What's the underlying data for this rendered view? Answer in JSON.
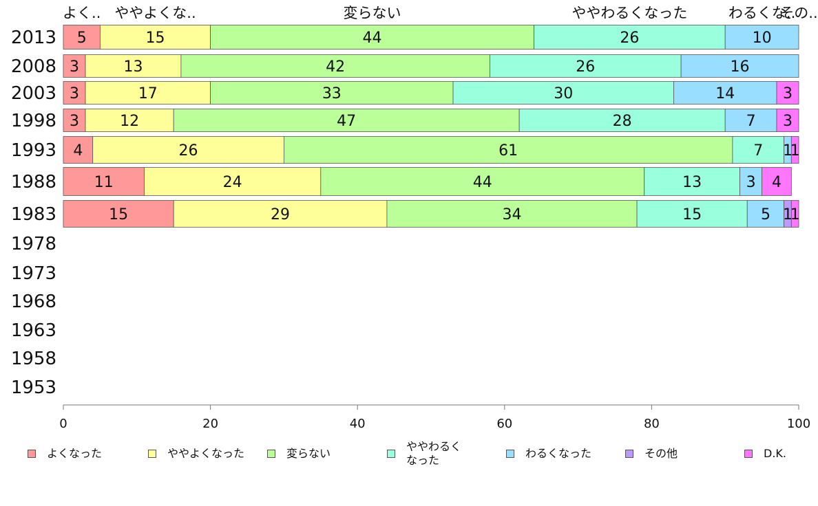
{
  "chart_data": {
    "type": "bar",
    "orientation": "horizontal",
    "stacked": true,
    "categories": [
      "2013",
      "2008",
      "2003",
      "1998",
      "1993",
      "1988",
      "1983",
      "1978",
      "1973",
      "1968",
      "1963",
      "1958",
      "1953"
    ],
    "series": [
      {
        "name": "よくなった",
        "short_label": "よく..",
        "color": "#ff9999",
        "values": [
          5,
          3,
          3,
          3,
          4,
          11,
          15,
          null,
          null,
          null,
          null,
          null,
          null
        ]
      },
      {
        "name": "ややよくなった",
        "short_label": "ややよくな..",
        "color": "#ffff99",
        "values": [
          15,
          13,
          17,
          12,
          26,
          24,
          29,
          null,
          null,
          null,
          null,
          null,
          null
        ]
      },
      {
        "name": "変らない",
        "short_label": "変らない",
        "color": "#bbff99",
        "values": [
          44,
          42,
          33,
          47,
          61,
          44,
          34,
          null,
          null,
          null,
          null,
          null,
          null
        ]
      },
      {
        "name": "ややわるくなった",
        "short_label": "ややわるくなった",
        "color": "#99ffdd",
        "values": [
          26,
          26,
          30,
          28,
          7,
          13,
          15,
          null,
          null,
          null,
          null,
          null,
          null
        ]
      },
      {
        "name": "わるくなった",
        "short_label": "わるくな..",
        "color": "#99ddff",
        "values": [
          10,
          16,
          14,
          7,
          1,
          3,
          5,
          null,
          null,
          null,
          null,
          null,
          null
        ]
      },
      {
        "name": "その他",
        "short_label": "その..",
        "color": "#bb99ff",
        "values": [
          0,
          0,
          0,
          0,
          0,
          0,
          1,
          null,
          null,
          null,
          null,
          null,
          null
        ]
      },
      {
        "name": "D.K.",
        "short_label": "",
        "color": "#ff77ff",
        "values": [
          0,
          0,
          3,
          3,
          1,
          4,
          1,
          null,
          null,
          null,
          null,
          null,
          null
        ]
      }
    ],
    "xlim": [
      0,
      100
    ],
    "xticks": [
      0,
      20,
      40,
      60,
      80,
      100
    ],
    "grid": false,
    "legend_position": "bottom"
  },
  "legend": {
    "items": [
      {
        "label": "よくなった",
        "color": "#ff9999"
      },
      {
        "label": "ややよくなった",
        "color": "#ffff99"
      },
      {
        "label": "変らない",
        "color": "#bbff99"
      },
      {
        "label": "ややわるく\nなった",
        "color": "#99ffdd"
      },
      {
        "label": "わるくなった",
        "color": "#99ddff"
      },
      {
        "label": "その他",
        "color": "#bb99ff"
      },
      {
        "label": "D.K.",
        "color": "#ff77ff"
      }
    ]
  }
}
